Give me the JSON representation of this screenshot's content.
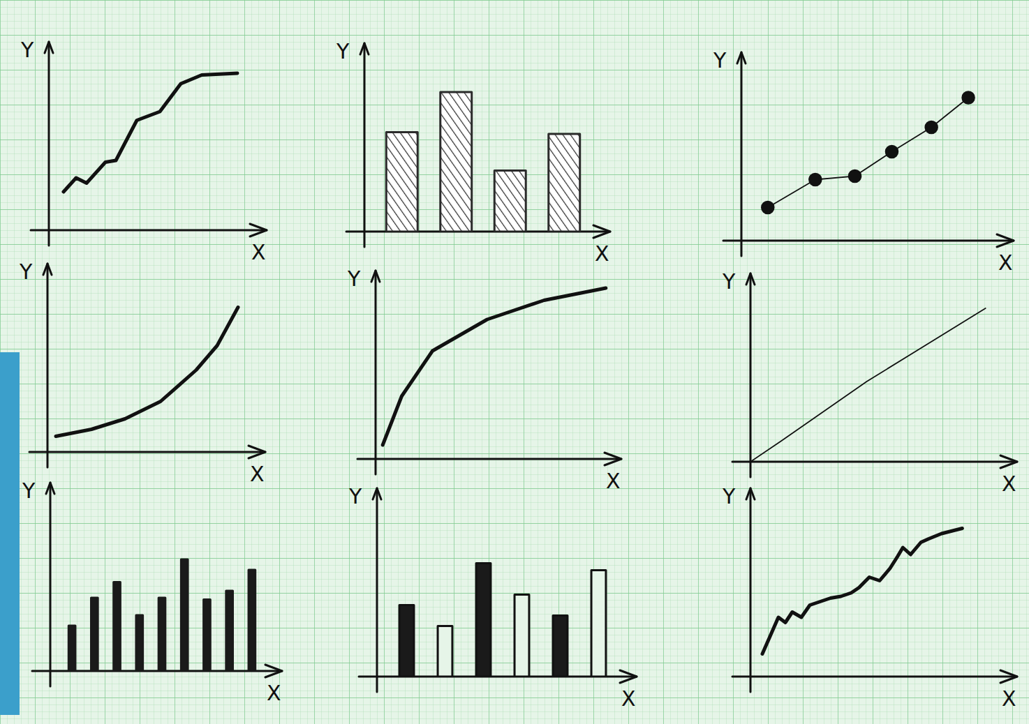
{
  "chart_data": [
    {
      "type": "line",
      "x_label": "X",
      "y_label": "Y",
      "xlim": [
        0,
        10
      ],
      "ylim": [
        0,
        10
      ],
      "tick_labels": false,
      "color": "#111111",
      "line_style": "solid",
      "x": [
        0.7,
        1.3,
        1.8,
        2.7,
        3.2,
        4.2,
        5.3,
        6.3,
        7.3,
        9.0
      ],
      "values": [
        2.2,
        3.0,
        2.7,
        3.9,
        4.0,
        6.3,
        6.8,
        8.4,
        8.9,
        9.0
      ]
    },
    {
      "type": "bar",
      "x_label": "X",
      "y_label": "Y",
      "ylim": [
        0,
        10
      ],
      "tick_labels": false,
      "color": "#2b2b2b",
      "line_style": "hatched",
      "categories": [
        null,
        null,
        null,
        null
      ],
      "values": [
        5.7,
        8.0,
        3.5,
        5.6
      ]
    },
    {
      "type": "scatter",
      "x_label": "X",
      "y_label": "Y",
      "xlim": [
        0,
        10
      ],
      "ylim": [
        0,
        10
      ],
      "tick_labels": false,
      "color": "#111111",
      "marker": "circle",
      "line_style": "thin",
      "x": [
        1.0,
        2.8,
        4.3,
        5.7,
        7.2,
        8.6
      ],
      "values": [
        1.9,
        3.5,
        3.7,
        5.1,
        6.5,
        8.2
      ]
    },
    {
      "type": "line",
      "x_label": "X",
      "y_label": "Y",
      "xlim": [
        0,
        10
      ],
      "ylim": [
        0,
        10
      ],
      "tick_labels": false,
      "color": "#111111",
      "line_style": "solid",
      "x": [
        0.4,
        2.1,
        3.7,
        5.4,
        7.1,
        8.1,
        9.1
      ],
      "values": [
        0.9,
        1.3,
        1.9,
        2.9,
        4.7,
        6.1,
        8.3
      ]
    },
    {
      "type": "line",
      "x_label": "X",
      "y_label": "Y",
      "xlim": [
        0,
        10
      ],
      "ylim": [
        0,
        10
      ],
      "tick_labels": false,
      "color": "#111111",
      "line_style": "solid",
      "x": [
        0.3,
        1.1,
        2.4,
        4.7,
        7.1,
        9.7
      ],
      "values": [
        0.8,
        3.6,
        6.2,
        8.0,
        9.1,
        9.8
      ]
    },
    {
      "type": "line",
      "x_label": "X",
      "y_label": "Y",
      "xlim": [
        0,
        10
      ],
      "ylim": [
        0,
        10
      ],
      "tick_labels": false,
      "color": "#111111",
      "line_style": "thin",
      "x": [
        0,
        1.2,
        4.5,
        9.1
      ],
      "values": [
        0,
        1.2,
        4.6,
        8.8
      ]
    },
    {
      "type": "bar",
      "x_label": "X",
      "y_label": "Y",
      "ylim": [
        0,
        10
      ],
      "tick_labels": false,
      "color": "#1a1a1a",
      "line_style": "solid",
      "categories": [
        null,
        null,
        null,
        null,
        null,
        null,
        null,
        null,
        null
      ],
      "values": [
        2.6,
        4.2,
        5.1,
        3.2,
        4.2,
        6.4,
        4.1,
        4.6,
        5.8
      ]
    },
    {
      "type": "bar",
      "x_label": "X",
      "y_label": "Y",
      "ylim": [
        0,
        10
      ],
      "tick_labels": false,
      "line_style": "solid",
      "colors": [
        "#1a1a1a",
        "#e6f5e8",
        "#1a1a1a",
        "#e6f5e8",
        "#1a1a1a",
        "#e6f5e8"
      ],
      "categories": [
        null,
        null,
        null,
        null,
        null,
        null
      ],
      "values": [
        4.1,
        2.9,
        6.5,
        4.7,
        3.5,
        6.1
      ]
    },
    {
      "type": "line",
      "x_label": "X",
      "y_label": "Y",
      "xlim": [
        0,
        10
      ],
      "ylim": [
        0,
        10
      ],
      "tick_labels": false,
      "color": "#111111",
      "line_style": "solid",
      "x": [
        0.46,
        1.08,
        1.35,
        1.62,
        1.97,
        2.3,
        2.7,
        3.1,
        3.5,
        3.9,
        4.2,
        4.6,
        5.0,
        5.4,
        5.7,
        5.9,
        6.2,
        6.6,
        6.9,
        7.4,
        8.2
      ],
      "values": [
        1.3,
        3.4,
        3.1,
        3.7,
        3.4,
        4.1,
        4.3,
        4.5,
        4.6,
        4.8,
        5.1,
        5.7,
        5.5,
        6.2,
        6.9,
        7.4,
        7.0,
        7.7,
        7.9,
        8.2,
        8.5
      ]
    }
  ]
}
